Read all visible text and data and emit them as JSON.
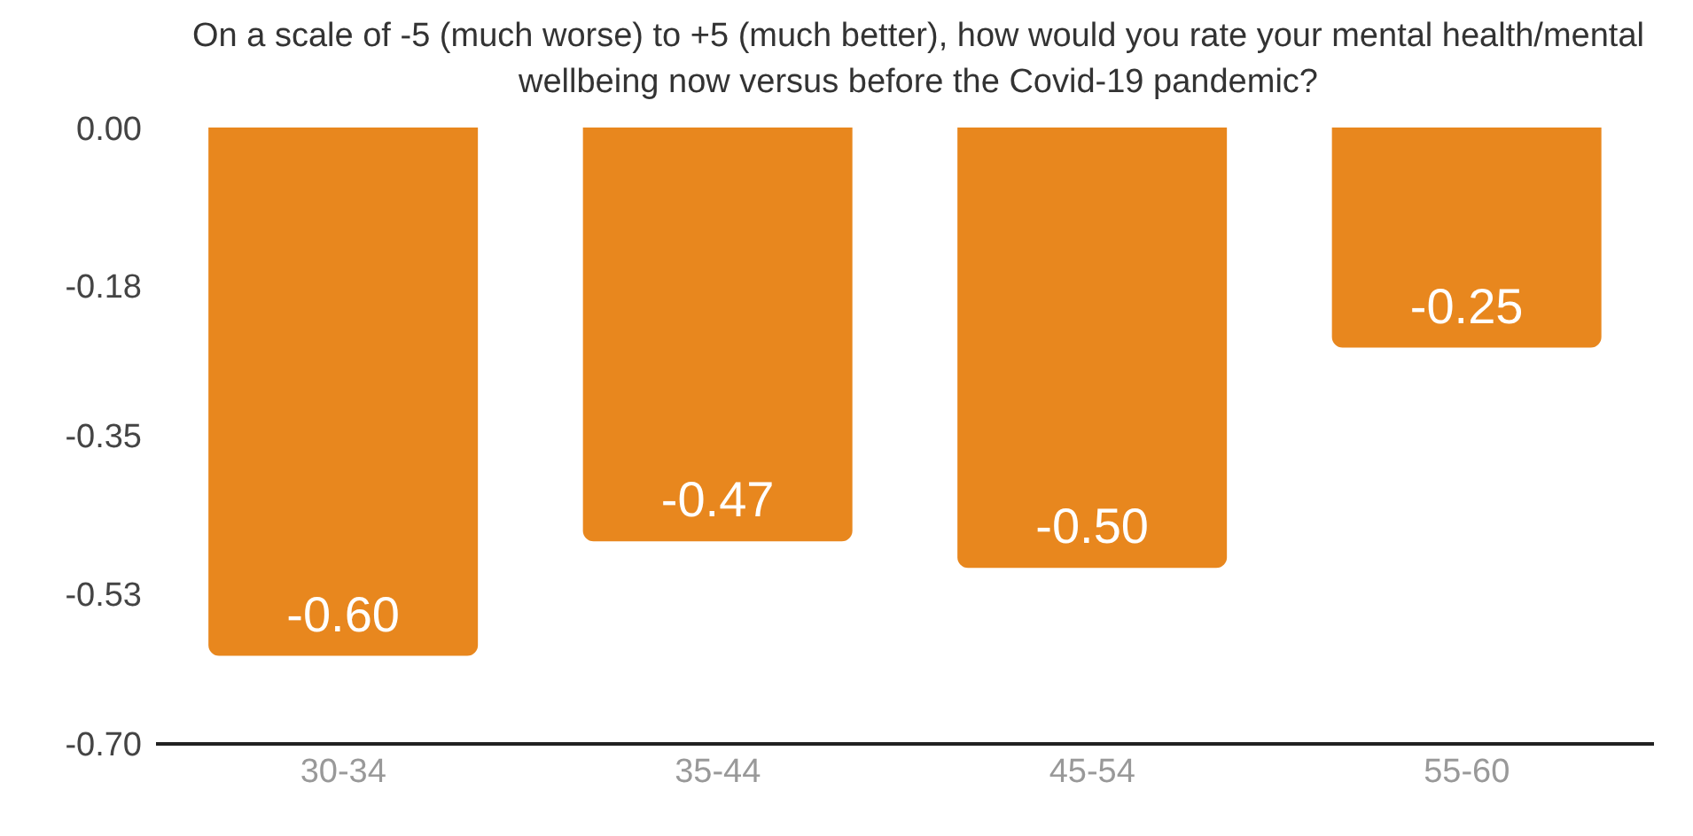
{
  "chart_data": {
    "type": "bar",
    "title": "On a scale of -5 (much worse) to +5 (much better), how would you rate your mental health/mental wellbeing now versus before the Covid-19 pandemic?",
    "categories": [
      "30-34",
      "35-44",
      "45-54",
      "55-60"
    ],
    "values": [
      -0.6,
      -0.47,
      -0.5,
      -0.25
    ],
    "color": "#e8871e",
    "ylim": [
      -0.7,
      0.0
    ],
    "yticks": [
      {
        "value": 0,
        "label": "0.00"
      },
      -0.18,
      -0.35,
      -0.53,
      {
        "value": -0.7,
        "label": "-0.70"
      }
    ],
    "value_labels": [
      "-0.60",
      "-0.47",
      "-0.50",
      "-0.25"
    ]
  }
}
